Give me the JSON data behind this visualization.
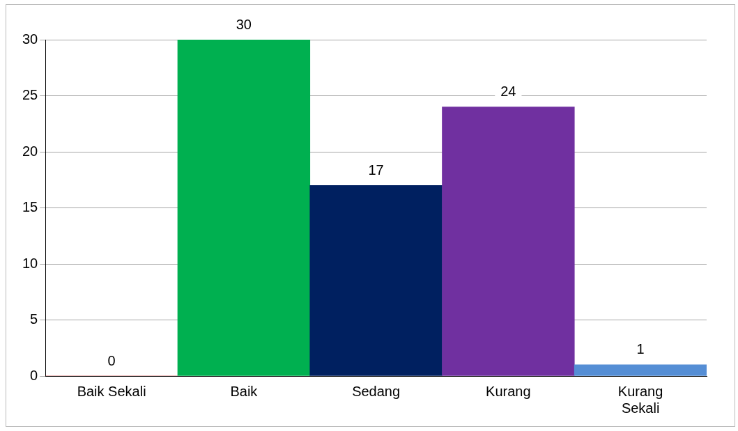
{
  "chart_data": {
    "type": "bar",
    "categories": [
      "Baik Sekali",
      "Baik",
      "Sedang",
      "Kurang",
      "Kurang Sekali"
    ],
    "values": [
      0,
      30,
      17,
      24,
      1
    ],
    "colors": [
      "#c00000",
      "#00b050",
      "#002060",
      "#7030a0",
      "#558ed5"
    ],
    "ylim": [
      0,
      30
    ],
    "yticks": [
      0,
      5,
      10,
      15,
      20,
      25,
      30
    ],
    "grid": "y",
    "legend": false,
    "data_labels": true
  }
}
